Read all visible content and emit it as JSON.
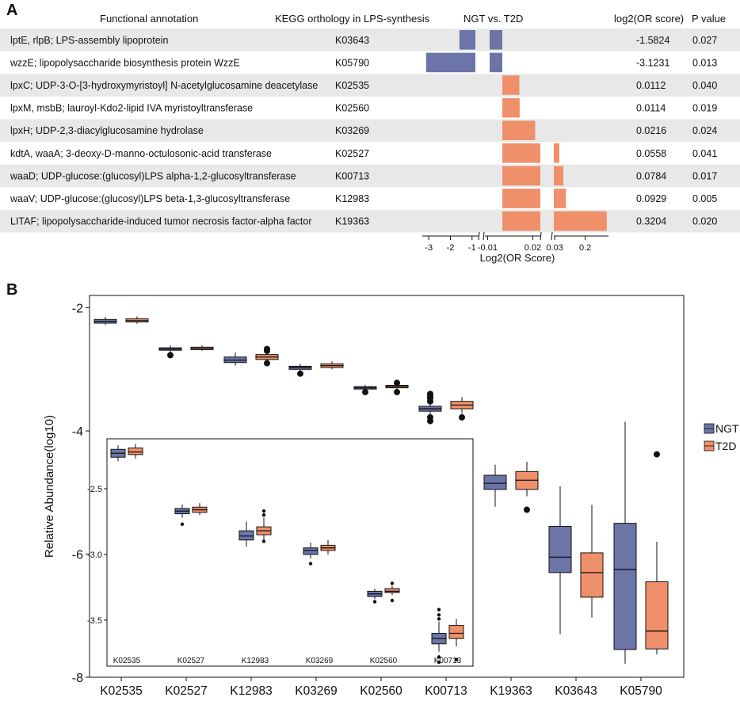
{
  "panelA": {
    "letter": "A",
    "headers": {
      "annotation": "Functional annotation",
      "kegg": "KEGG orthology in LPS-synthesis",
      "comparison": "NGT vs. T2D",
      "log2": "log2(OR score)",
      "pvalue": "P value"
    },
    "colors": {
      "negative": "#6b75a8",
      "positive": "#f0906a",
      "stripe": "#e8e8e8"
    },
    "rows": [
      {
        "annotation": "lptE, rlpB; LPS-assembly lipoprotein",
        "ko": "K03643",
        "log2": "-1.5824",
        "p": "0.027",
        "value": -1.5824
      },
      {
        "annotation": "wzzE; lipopolysaccharide biosynthesis protein WzzE",
        "ko": "K05790",
        "log2": "-3.1231",
        "p": "0.013",
        "value": -3.1231
      },
      {
        "annotation": "lpxC; UDP-3-O-[3-hydroxymyristoyl] N-acetylglucosamine deacetylase",
        "ko": "K02535",
        "log2": "0.0112",
        "p": "0.040",
        "value": 0.0112
      },
      {
        "annotation": "lpxM, msbB; lauroyl-Kdo2-lipid IVA myristoyltransferase",
        "ko": "K02560",
        "log2": "0.0114",
        "p": "0.019",
        "value": 0.0114
      },
      {
        "annotation": "lpxH; UDP-2,3-diacylglucosamine hydrolase",
        "ko": "K03269",
        "log2": "0.0216",
        "p": "0.024",
        "value": 0.0216
      },
      {
        "annotation": "kdtA, waaA; 3-deoxy-D-manno-octulosonic-acid transferase",
        "ko": "K02527",
        "log2": "0.0558",
        "p": "0.041",
        "value": 0.0558
      },
      {
        "annotation": "waaD; UDP-glucose:(glucosyl)LPS alpha-1,2-glucosyltransferase",
        "ko": "K00713",
        "log2": "0.0784",
        "p": "0.017",
        "value": 0.0784
      },
      {
        "annotation": "waaV; UDP-glucose:(glucosyl)LPS beta-1,3-glucosyltransferase",
        "ko": "K12983",
        "log2": "0.0929",
        "p": "0.005",
        "value": 0.0929
      },
      {
        "annotation": "LITAF; lipopolysaccharide-induced tumor necrosis factor-alpha factor",
        "ko": "K19363",
        "log2": "0.3204",
        "p": "0.020",
        "value": 0.3204
      }
    ],
    "axis": {
      "label": "Log2(OR Score)",
      "segments": [
        {
          "range": [
            -3.3,
            -0.7
          ],
          "ticks": [
            -3,
            -2,
            -1
          ],
          "tickLabels": [
            "-3",
            "-2",
            "-1"
          ]
        },
        {
          "range": [
            -0.012,
            0.002
          ],
          "ticks": [
            -0.01
          ],
          "tickLabels": [
            "-0.01"
          ]
        },
        {
          "range": [
            0,
            0.025
          ],
          "ticks": [
            0.02
          ],
          "tickLabels": [
            "0.02"
          ]
        },
        {
          "range": [
            0.025,
            0.33
          ],
          "ticks": [
            0.03,
            0.2
          ],
          "tickLabels": [
            "0.03",
            "0.2"
          ]
        }
      ]
    }
  },
  "chart_data": {
    "type": "boxplot",
    "panel": "B",
    "ylabel": "Relative Abundance(log10)",
    "ylim": [
      -8,
      -1.8
    ],
    "yticks": [
      -2,
      -4,
      -6,
      -8
    ],
    "yticklabels": [
      "-2",
      "-4",
      "-6",
      "-8"
    ],
    "legend": {
      "position": "right",
      "entries": [
        "NGT",
        "T2D"
      ]
    },
    "colors": {
      "NGT": "#6b75a8",
      "T2D": "#f0906a"
    },
    "categories": [
      "K02535",
      "K02527",
      "K12983",
      "K03269",
      "K02560",
      "K00713",
      "K19363",
      "K03643",
      "K05790"
    ],
    "series": [
      {
        "name": "NGT",
        "boxes": [
          {
            "min": -2.28,
            "q1": -2.25,
            "median": -2.22,
            "q3": -2.19,
            "max": -2.15,
            "outliers": []
          },
          {
            "min": -2.72,
            "q1": -2.69,
            "median": -2.67,
            "q3": -2.65,
            "max": -2.61,
            "outliers": [
              -2.77
            ]
          },
          {
            "min": -2.94,
            "q1": -2.89,
            "median": -2.85,
            "q3": -2.8,
            "max": -2.73,
            "outliers": []
          },
          {
            "min": -3.03,
            "q1": -3.0,
            "median": -2.97,
            "q3": -2.95,
            "max": -2.91,
            "outliers": [
              -3.07
            ]
          },
          {
            "min": -3.34,
            "q1": -3.32,
            "median": -3.3,
            "q3": -3.28,
            "max": -3.25,
            "outliers": [
              -3.37
            ]
          },
          {
            "min": -3.74,
            "q1": -3.68,
            "median": -3.64,
            "q3": -3.6,
            "max": -3.48,
            "outliers": [
              -3.4,
              -3.44,
              -3.47,
              -3.52,
              -3.78,
              -3.84
            ]
          },
          {
            "min": -5.23,
            "q1": -4.95,
            "median": -4.85,
            "q3": -4.72,
            "max": -4.55,
            "outliers": []
          },
          {
            "min": -7.3,
            "q1": -6.3,
            "median": -6.05,
            "q3": -5.55,
            "max": -4.9,
            "outliers": []
          },
          {
            "min": -7.78,
            "q1": -7.55,
            "median": -6.25,
            "q3": -5.5,
            "max": -3.85,
            "outliers": []
          }
        ]
      },
      {
        "name": "T2D",
        "boxes": [
          {
            "min": -2.26,
            "q1": -2.23,
            "median": -2.21,
            "q3": -2.18,
            "max": -2.14,
            "outliers": []
          },
          {
            "min": -2.7,
            "q1": -2.68,
            "median": -2.66,
            "q3": -2.64,
            "max": -2.61,
            "outliers": []
          },
          {
            "min": -2.88,
            "q1": -2.84,
            "median": -2.8,
            "q3": -2.76,
            "max": -2.7,
            "outliers": [
              -2.67,
              -2.7,
              -2.9
            ]
          },
          {
            "min": -3.0,
            "q1": -2.97,
            "median": -2.94,
            "q3": -2.91,
            "max": -2.87,
            "outliers": []
          },
          {
            "min": -3.32,
            "q1": -3.3,
            "median": -3.28,
            "q3": -3.26,
            "max": -3.23,
            "outliers": [
              -3.22,
              -3.37
            ]
          },
          {
            "min": -3.72,
            "q1": -3.64,
            "median": -3.58,
            "q3": -3.52,
            "max": -3.45,
            "outliers": [
              -3.78
            ]
          },
          {
            "min": -5.06,
            "q1": -4.95,
            "median": -4.8,
            "q3": -4.66,
            "max": -4.5,
            "outliers": [
              -5.28
            ]
          },
          {
            "min": -7.03,
            "q1": -6.7,
            "median": -6.3,
            "q3": -5.98,
            "max": -5.2,
            "outliers": []
          },
          {
            "min": -7.63,
            "q1": -7.54,
            "median": -7.25,
            "q3": -6.45,
            "max": -5.8,
            "outliers": [
              -4.38
            ]
          }
        ]
      }
    ],
    "inset": {
      "categories": [
        "K02535",
        "K02527",
        "K12983",
        "K03269",
        "K02560",
        "K00713"
      ],
      "ylim": [
        -3.85,
        -2.12
      ],
      "yticks": [
        -2.5,
        -3.0,
        -3.5
      ],
      "yticklabels": [
        "-2.5",
        "-3.0",
        "-3.5"
      ],
      "series": [
        {
          "name": "NGT",
          "boxes": [
            {
              "min": -2.29,
              "q1": -2.26,
              "median": -2.23,
              "q3": -2.2,
              "max": -2.17,
              "outliers": []
            },
            {
              "min": -2.72,
              "q1": -2.69,
              "median": -2.67,
              "q3": -2.65,
              "max": -2.62,
              "outliers": [
                -2.77
              ]
            },
            {
              "min": -2.94,
              "q1": -2.89,
              "median": -2.86,
              "q3": -2.82,
              "max": -2.75,
              "outliers": []
            },
            {
              "min": -3.03,
              "q1": -3.0,
              "median": -2.97,
              "q3": -2.95,
              "max": -2.91,
              "outliers": [
                -3.07
              ]
            },
            {
              "min": -3.34,
              "q1": -3.32,
              "median": -3.3,
              "q3": -3.28,
              "max": -3.26,
              "outliers": [
                -3.36
              ]
            },
            {
              "min": -3.74,
              "q1": -3.68,
              "median": -3.64,
              "q3": -3.6,
              "max": -3.51,
              "outliers": [
                -3.42,
                -3.46,
                -3.49,
                -3.78,
                -3.82
              ]
            }
          ]
        },
        {
          "name": "T2D",
          "boxes": [
            {
              "min": -2.27,
              "q1": -2.24,
              "median": -2.22,
              "q3": -2.19,
              "max": -2.16,
              "outliers": []
            },
            {
              "min": -2.7,
              "q1": -2.68,
              "median": -2.66,
              "q3": -2.64,
              "max": -2.61,
              "outliers": []
            },
            {
              "min": -2.89,
              "q1": -2.85,
              "median": -2.82,
              "q3": -2.79,
              "max": -2.72,
              "outliers": [
                -2.67,
                -2.7,
                -2.9
              ]
            },
            {
              "min": -3.0,
              "q1": -2.97,
              "median": -2.95,
              "q3": -2.93,
              "max": -2.89,
              "outliers": []
            },
            {
              "min": -3.31,
              "q1": -3.29,
              "median": -3.28,
              "q3": -3.26,
              "max": -3.24,
              "outliers": [
                -3.22,
                -3.35
              ]
            },
            {
              "min": -3.7,
              "q1": -3.64,
              "median": -3.6,
              "q3": -3.54,
              "max": -3.49,
              "outliers": [
                -3.8
              ]
            }
          ]
        }
      ]
    }
  }
}
